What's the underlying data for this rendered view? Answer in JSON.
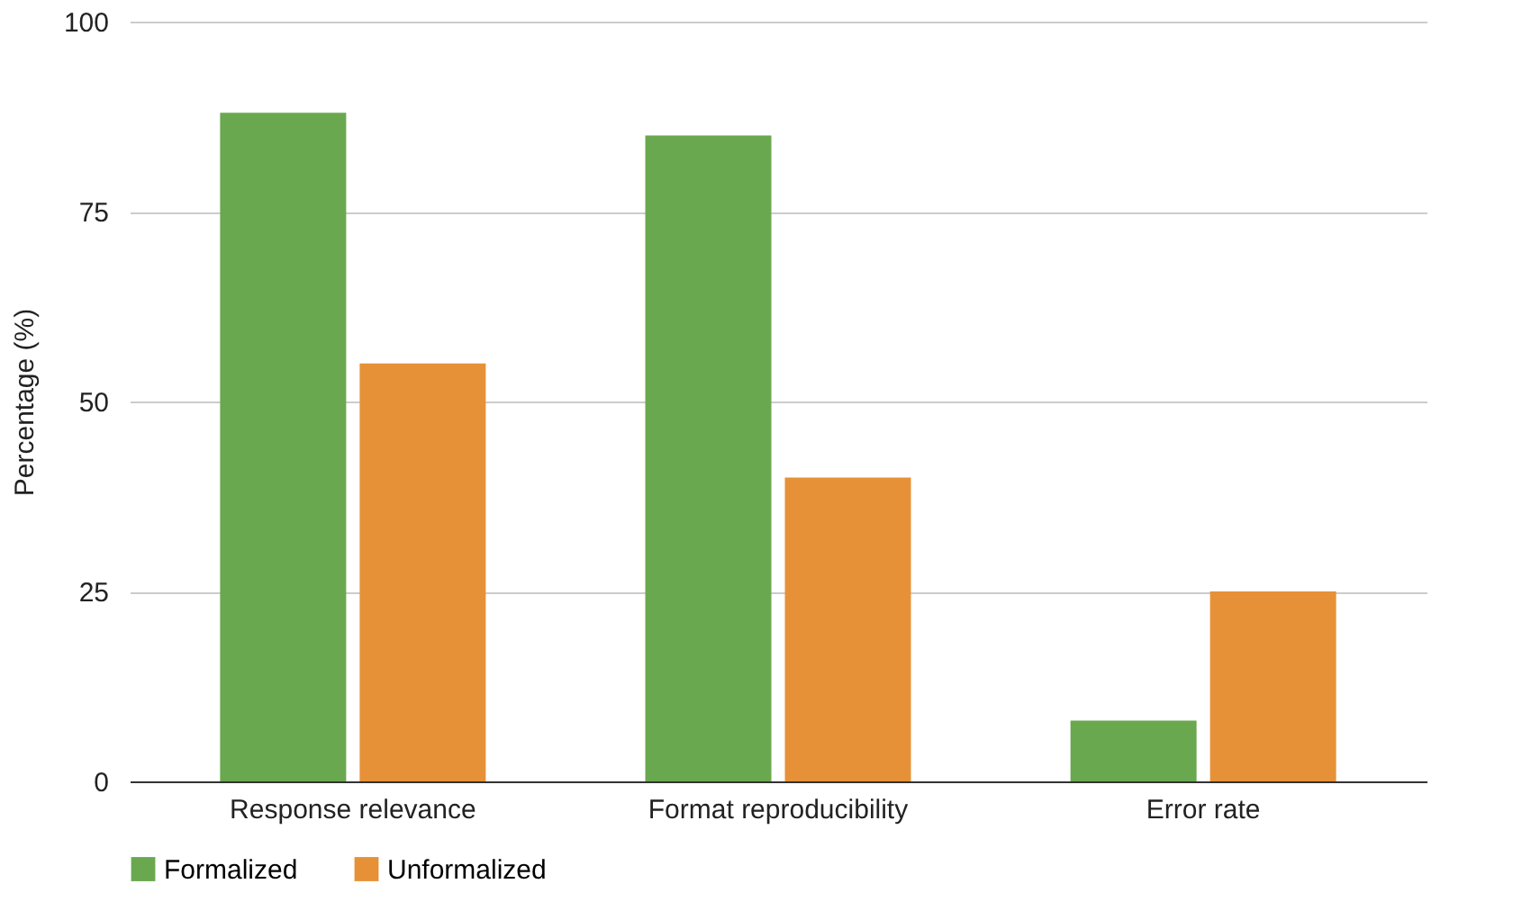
{
  "chart_data": {
    "type": "bar",
    "ylabel": "Percentage (%)",
    "categories": [
      "Response relevance",
      "Format reproducibility",
      "Error rate"
    ],
    "series": [
      {
        "name": "Formalized",
        "color": "#6aa84f",
        "values": [
          88,
          85,
          8
        ]
      },
      {
        "name": "Unformalized",
        "color": "#e69138",
        "values": [
          55,
          40,
          25
        ]
      }
    ],
    "ylim": [
      0,
      100
    ],
    "yticks": [
      0,
      25,
      50,
      75,
      100
    ],
    "grid": "y",
    "legend": "bottom"
  }
}
